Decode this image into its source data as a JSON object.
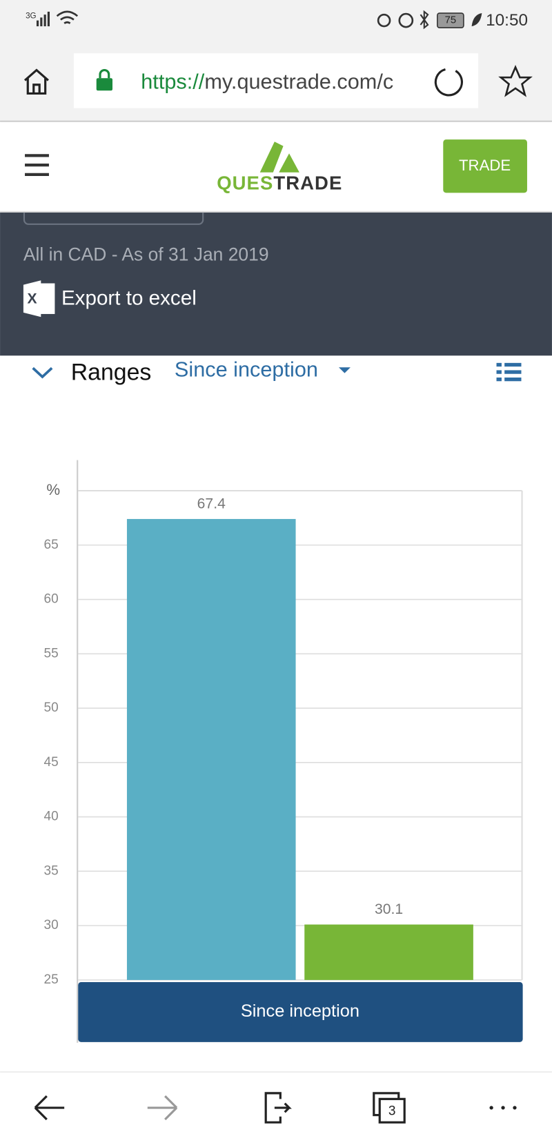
{
  "status_bar": {
    "network": "3G",
    "battery": "75",
    "time": "10:50"
  },
  "browser": {
    "url_scheme": "https://",
    "url_rest": "my.questrade.com/c"
  },
  "header": {
    "logo_left": "QUES",
    "logo_right": "TRADE",
    "trade_button": "TRADE"
  },
  "summary": {
    "as_of": "All in CAD - As of 31 Jan 2019",
    "export": "Export to excel"
  },
  "ranges": {
    "label": "Ranges",
    "selected": "Since inception"
  },
  "chart_data": {
    "type": "bar",
    "y_label": "%",
    "categories": [
      "Since inception"
    ],
    "series": [
      {
        "color": "#5aafc5",
        "values": [
          67.4
        ]
      },
      {
        "color": "#78b637",
        "values": [
          30.1
        ]
      }
    ],
    "ylim": [
      25,
      70
    ],
    "yticks": [
      25,
      30,
      35,
      40,
      45,
      50,
      55,
      60,
      65
    ],
    "grid": true
  },
  "bottom_nav": {
    "tabs": "3"
  }
}
